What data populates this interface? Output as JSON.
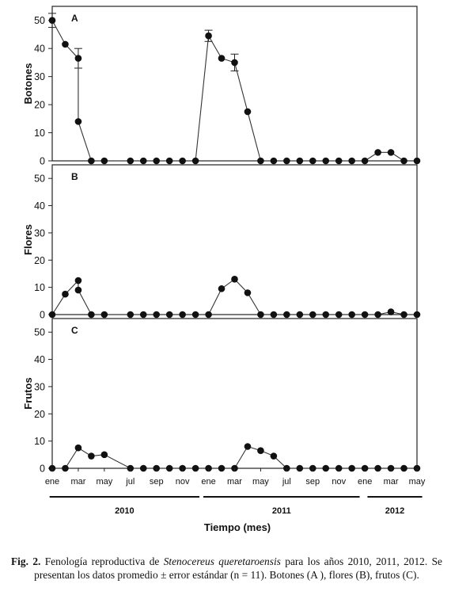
{
  "chart_data": {
    "type": "line",
    "x_ticks": [
      "ene",
      "mar",
      "may",
      "jul",
      "sep",
      "nov",
      "ene",
      "mar",
      "may",
      "jul",
      "sep",
      "nov",
      "ene",
      "mar",
      "may"
    ],
    "years": [
      "2010",
      "2011",
      "2012"
    ],
    "xlabel": "Tiempo (mes)",
    "ylim": [
      0,
      55
    ],
    "yticks": [
      0,
      10,
      20,
      30,
      40,
      50
    ],
    "grid": false,
    "panels": [
      {
        "letter": "A",
        "ylabel": "Botones",
        "points": [
          [
            0,
            50
          ],
          [
            1,
            41.5
          ],
          [
            2,
            36.5
          ],
          [
            2,
            14
          ],
          [
            3,
            0
          ],
          [
            4,
            0
          ],
          [
            6,
            0
          ],
          [
            7,
            0
          ],
          [
            8,
            0
          ],
          [
            9,
            0
          ],
          [
            10,
            0
          ],
          [
            11,
            0
          ],
          [
            12,
            44.5
          ],
          [
            13,
            36.5
          ],
          [
            14,
            35
          ],
          [
            15,
            17.5
          ],
          [
            16,
            0
          ],
          [
            17,
            0
          ],
          [
            18,
            0
          ],
          [
            19,
            0
          ],
          [
            20,
            0
          ],
          [
            21,
            0
          ],
          [
            22,
            0
          ],
          [
            23,
            0
          ],
          [
            24,
            0
          ],
          [
            25,
            3
          ],
          [
            26,
            3
          ],
          [
            27,
            0
          ],
          [
            28,
            0
          ]
        ],
        "errors": [
          {
            "x": 0,
            "y": 50,
            "lo": 47.5,
            "hi": 52.5
          },
          {
            "x": 2,
            "y": 36.5,
            "lo": 33,
            "hi": 40
          },
          {
            "x": 12,
            "y": 44.5,
            "lo": 42.5,
            "hi": 46.5
          },
          {
            "x": 14,
            "y": 35,
            "lo": 32,
            "hi": 38
          }
        ]
      },
      {
        "letter": "B",
        "ylabel": "Flores",
        "points": [
          [
            0,
            0
          ],
          [
            1,
            7.5
          ],
          [
            2,
            12.5
          ],
          [
            2,
            9
          ],
          [
            3,
            0
          ],
          [
            4,
            0
          ],
          [
            6,
            0
          ],
          [
            7,
            0
          ],
          [
            8,
            0
          ],
          [
            9,
            0
          ],
          [
            10,
            0
          ],
          [
            11,
            0
          ],
          [
            12,
            0
          ],
          [
            13,
            9.5
          ],
          [
            14,
            13
          ],
          [
            15,
            8
          ],
          [
            16,
            0
          ],
          [
            17,
            0
          ],
          [
            18,
            0
          ],
          [
            19,
            0
          ],
          [
            20,
            0
          ],
          [
            21,
            0
          ],
          [
            22,
            0
          ],
          [
            23,
            0
          ],
          [
            24,
            0
          ],
          [
            25,
            0
          ],
          [
            26,
            1
          ],
          [
            27,
            0
          ],
          [
            28,
            0
          ]
        ],
        "errors": []
      },
      {
        "letter": "C",
        "ylabel": "Frutos",
        "points": [
          [
            0,
            0
          ],
          [
            1,
            0
          ],
          [
            2,
            7.5
          ],
          [
            3,
            4.5
          ],
          [
            4,
            5
          ],
          [
            6,
            0
          ],
          [
            7,
            0
          ],
          [
            8,
            0
          ],
          [
            9,
            0
          ],
          [
            10,
            0
          ],
          [
            11,
            0
          ],
          [
            12,
            0
          ],
          [
            13,
            0
          ],
          [
            14,
            0
          ],
          [
            15,
            8
          ],
          [
            16,
            6.5
          ],
          [
            17,
            4.5
          ],
          [
            18,
            0
          ],
          [
            19,
            0
          ],
          [
            20,
            0
          ],
          [
            21,
            0
          ],
          [
            22,
            0
          ],
          [
            23,
            0
          ],
          [
            24,
            0
          ],
          [
            25,
            0
          ],
          [
            26,
            0
          ],
          [
            27,
            0
          ],
          [
            28,
            0
          ]
        ],
        "errors": []
      }
    ]
  },
  "caption": {
    "label": "Fig. 2.",
    "text1": " Fenología reproductiva de ",
    "species": "Stenocereus queretaroensis",
    "text2": " para los años 2010, 2011, 2012. Se presentan los datos promedio ± error estándar (n = 11). Botones (A ), flores (B), frutos (C)."
  }
}
